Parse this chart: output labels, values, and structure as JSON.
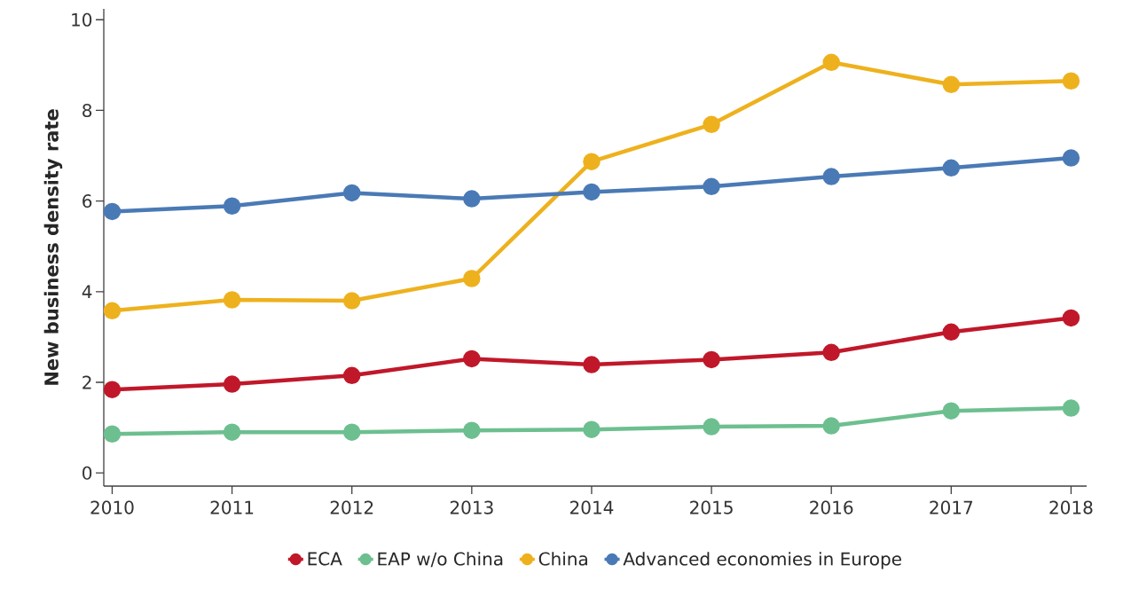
{
  "chart_data": {
    "type": "line",
    "ylabel": "New business density rate",
    "x": [
      2010,
      2011,
      2012,
      2013,
      2014,
      2015,
      2016,
      2017,
      2018
    ],
    "xlim": [
      2009.93,
      2018.13
    ],
    "ylim": [
      -0.29,
      10.24
    ],
    "xticks": [
      2010,
      2011,
      2012,
      2013,
      2014,
      2015,
      2016,
      2017,
      2018
    ],
    "yticks": [
      0,
      2,
      4,
      6,
      8,
      10
    ],
    "grid": false,
    "legend": "bottom",
    "marker": "circle",
    "line_style": "solid",
    "series": [
      {
        "name": "ECA",
        "color": "#c0182a",
        "values": [
          1.84,
          1.96,
          2.15,
          2.52,
          2.39,
          2.5,
          2.66,
          3.11,
          3.42
        ]
      },
      {
        "name": "EAP w/o China",
        "color": "#6dbf8f",
        "values": [
          0.86,
          0.9,
          0.9,
          0.94,
          0.96,
          1.02,
          1.04,
          1.37,
          1.43
        ]
      },
      {
        "name": "China",
        "color": "#eeb11e",
        "values": [
          3.58,
          3.82,
          3.8,
          4.29,
          6.87,
          7.69,
          9.06,
          8.57,
          8.65
        ]
      },
      {
        "name": "Advanced economies in Europe",
        "color": "#4a7ab5",
        "values": [
          5.77,
          5.89,
          6.18,
          6.05,
          6.2,
          6.32,
          6.54,
          6.73,
          6.95
        ]
      }
    ]
  }
}
